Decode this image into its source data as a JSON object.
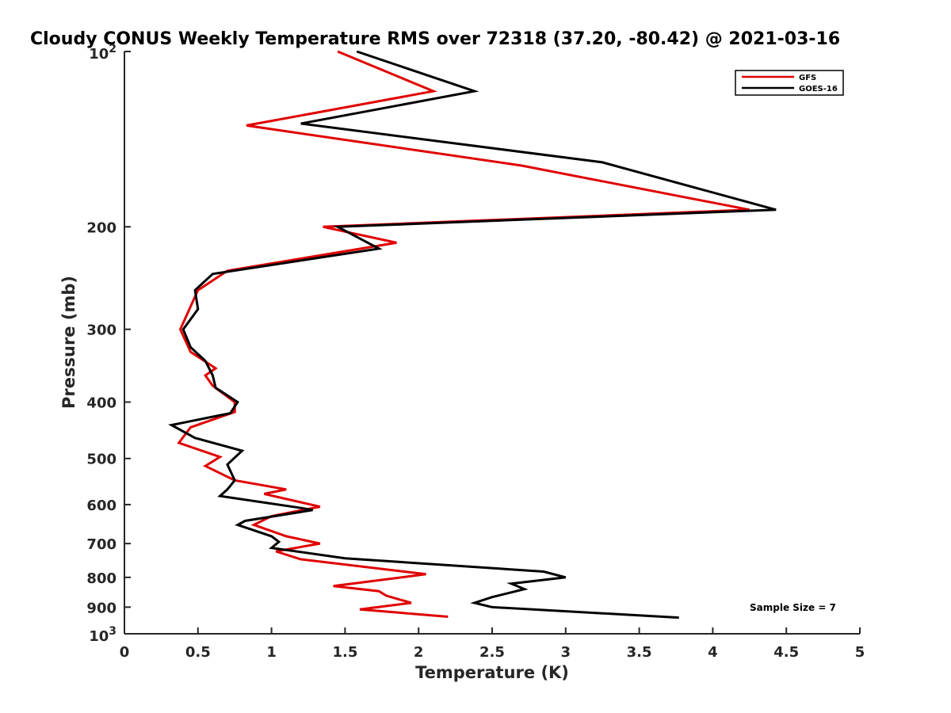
{
  "chart_data": {
    "type": "line",
    "title": "Cloudy CONUS Weekly Temperature RMS over 72318 (37.20, -80.42) @ 2021-03-16",
    "xlabel": "Temperature (K)",
    "ylabel": "Pressure (mb)",
    "xlim": [
      0,
      5
    ],
    "ylim": [
      100,
      1000
    ],
    "y_scale": "log",
    "y_reversed": true,
    "grid": false,
    "legend_position": "top-right",
    "x_ticks": [
      {
        "value": 0,
        "label": "0"
      },
      {
        "value": 0.5,
        "label": "0.5"
      },
      {
        "value": 1,
        "label": "1"
      },
      {
        "value": 1.5,
        "label": "1.5"
      },
      {
        "value": 2,
        "label": "2"
      },
      {
        "value": 2.5,
        "label": "2.5"
      },
      {
        "value": 3,
        "label": "3"
      },
      {
        "value": 3.5,
        "label": "3.5"
      },
      {
        "value": 4,
        "label": "4"
      },
      {
        "value": 4.5,
        "label": "4.5"
      },
      {
        "value": 5,
        "label": "5"
      }
    ],
    "y_ticks": [
      {
        "value": 100,
        "base": "10",
        "exp": "2"
      },
      {
        "value": 200,
        "label": "200"
      },
      {
        "value": 300,
        "label": "300"
      },
      {
        "value": 400,
        "label": "400"
      },
      {
        "value": 500,
        "label": "500"
      },
      {
        "value": 600,
        "label": "600"
      },
      {
        "value": 700,
        "label": "700"
      },
      {
        "value": 800,
        "label": "800"
      },
      {
        "value": 900,
        "label": "900"
      },
      {
        "value": 1000,
        "base": "10",
        "exp": "3"
      }
    ],
    "annotation": "Sample Size = 7",
    "series": [
      {
        "name": "GFS",
        "color": "#e00000",
        "points": [
          [
            1.45,
            100
          ],
          [
            2.1,
            117
          ],
          [
            0.83,
            134
          ],
          [
            2.7,
            157
          ],
          [
            4.25,
            187
          ],
          [
            1.35,
            200
          ],
          [
            1.85,
            213
          ],
          [
            0.7,
            238
          ],
          [
            0.5,
            257
          ],
          [
            0.38,
            300
          ],
          [
            0.45,
            328
          ],
          [
            0.62,
            350
          ],
          [
            0.55,
            360
          ],
          [
            0.6,
            375
          ],
          [
            0.75,
            400
          ],
          [
            0.75,
            416
          ],
          [
            0.45,
            442
          ],
          [
            0.37,
            470
          ],
          [
            0.65,
            497
          ],
          [
            0.55,
            515
          ],
          [
            0.75,
            545
          ],
          [
            1.1,
            565
          ],
          [
            0.95,
            575
          ],
          [
            1.33,
            605
          ],
          [
            1.0,
            628
          ],
          [
            0.88,
            650
          ],
          [
            1.1,
            680
          ],
          [
            1.33,
            700
          ],
          [
            1.03,
            722
          ],
          [
            1.2,
            745
          ],
          [
            2.05,
            790
          ],
          [
            1.42,
            828
          ],
          [
            1.73,
            845
          ],
          [
            1.78,
            860
          ],
          [
            1.95,
            885
          ],
          [
            1.6,
            908
          ],
          [
            2.2,
            935
          ]
        ]
      },
      {
        "name": "GOES-16",
        "color": "#000000",
        "points": [
          [
            1.58,
            100
          ],
          [
            2.38,
            117
          ],
          [
            1.2,
            133
          ],
          [
            3.25,
            155
          ],
          [
            4.43,
            187
          ],
          [
            1.45,
            200
          ],
          [
            1.73,
            218
          ],
          [
            0.6,
            241
          ],
          [
            0.48,
            257
          ],
          [
            0.5,
            277
          ],
          [
            0.4,
            300
          ],
          [
            0.45,
            322
          ],
          [
            0.55,
            340
          ],
          [
            0.6,
            360
          ],
          [
            0.62,
            378
          ],
          [
            0.77,
            400
          ],
          [
            0.72,
            418
          ],
          [
            0.32,
            438
          ],
          [
            0.48,
            461
          ],
          [
            0.8,
            485
          ],
          [
            0.7,
            512
          ],
          [
            0.75,
            545
          ],
          [
            0.7,
            565
          ],
          [
            0.65,
            580
          ],
          [
            1.2,
            608
          ],
          [
            1.28,
            613
          ],
          [
            0.82,
            640
          ],
          [
            0.77,
            650
          ],
          [
            1.0,
            680
          ],
          [
            1.05,
            695
          ],
          [
            1.0,
            712
          ],
          [
            1.5,
            742
          ],
          [
            2.85,
            782
          ],
          [
            3.0,
            800
          ],
          [
            2.63,
            820
          ],
          [
            2.72,
            838
          ],
          [
            2.5,
            865
          ],
          [
            2.38,
            885
          ],
          [
            2.5,
            900
          ],
          [
            3.77,
            938
          ]
        ]
      }
    ]
  }
}
